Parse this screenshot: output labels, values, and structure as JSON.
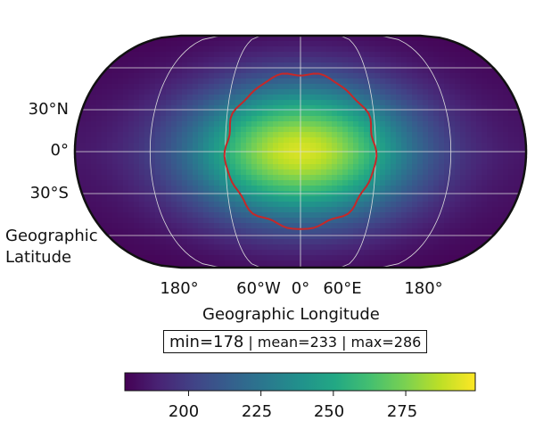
{
  "map": {
    "latitude_title_line1": "Geographic",
    "latitude_title_line2": "Latitude",
    "longitude_title": "Geographic Longitude",
    "lat_ticks": [
      "30°N",
      "0°",
      "30°S"
    ],
    "lon_ticks": [
      "180°",
      "60°W",
      "0°",
      "60°E",
      "180°"
    ],
    "projection": "robinson-like ellipse",
    "grid": true,
    "grid_color": "#dddddd",
    "contour_color": "#c62828"
  },
  "stats": {
    "min": "min=178",
    "mean": "mean=233",
    "max": "max=286",
    "separator": "|"
  },
  "colorbar": {
    "colormap": "viridis",
    "range": [
      178,
      299
    ],
    "ticks": [
      "200",
      "225",
      "250",
      "275"
    ],
    "tick_values": [
      200,
      225,
      250,
      275
    ]
  }
}
